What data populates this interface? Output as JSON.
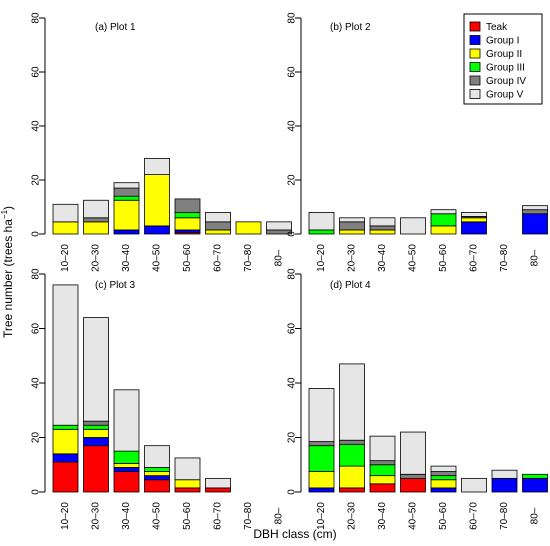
{
  "colors": {
    "Teak": "#ff0000",
    "Group I": "#0000ff",
    "Group II": "#ffff00",
    "Group III": "#00ff00",
    "Group IV": "#808080",
    "Group V": "#e6e6e6"
  },
  "axis_labels": {
    "xlabel": "DBH class (cm)",
    "ylabel": "Tree number (trees ha",
    "ylabel_sup": "−1",
    "ylabel_close": ")"
  },
  "chart_data": [
    {
      "type": "bar",
      "stacked": true,
      "title": "(a) Plot 1",
      "categories": [
        "10–20",
        "20–30",
        "30–40",
        "40–50",
        "50–60",
        "60–70",
        "70–80",
        "80–"
      ],
      "ylim": [
        0,
        80
      ],
      "yticks": [
        0,
        20,
        40,
        60,
        80
      ],
      "series": [
        {
          "name": "Teak",
          "values": [
            0,
            0,
            0,
            0,
            0.5,
            0,
            0,
            0
          ]
        },
        {
          "name": "Group I",
          "values": [
            0,
            0,
            1.5,
            3,
            1,
            0,
            0,
            0
          ]
        },
        {
          "name": "Group II",
          "values": [
            4.5,
            4.5,
            11,
            19,
            4.5,
            1.5,
            4.5,
            0
          ]
        },
        {
          "name": "Group III",
          "values": [
            0,
            0,
            1.5,
            0,
            2,
            0,
            0,
            0
          ]
        },
        {
          "name": "Group IV",
          "values": [
            0,
            1.5,
            3,
            0,
            5,
            3,
            0,
            1.5
          ]
        },
        {
          "name": "Group V",
          "values": [
            6.5,
            6.5,
            2,
            6,
            0,
            3.5,
            0,
            3
          ]
        }
      ]
    },
    {
      "type": "bar",
      "stacked": true,
      "title": "(b) Plot 2",
      "categories": [
        "10–20",
        "20–30",
        "30–40",
        "40–50",
        "50–60",
        "60–70",
        "70–80",
        "80–"
      ],
      "ylim": [
        0,
        80
      ],
      "yticks": [
        0,
        20,
        40,
        60,
        80
      ],
      "series": [
        {
          "name": "Teak",
          "values": [
            0,
            0,
            0,
            0,
            0,
            0,
            0,
            0
          ]
        },
        {
          "name": "Group I",
          "values": [
            0,
            0,
            0,
            0,
            0,
            4.5,
            0,
            7.5
          ]
        },
        {
          "name": "Group II",
          "values": [
            0,
            1.5,
            1.5,
            0,
            3,
            1.5,
            0,
            0
          ]
        },
        {
          "name": "Group III",
          "values": [
            1.5,
            0,
            0,
            0,
            4.5,
            0,
            0,
            0
          ]
        },
        {
          "name": "Group IV",
          "values": [
            0,
            3,
            1.5,
            0,
            0,
            0.5,
            0,
            1.5
          ]
        },
        {
          "name": "Group V",
          "values": [
            6.5,
            1.5,
            3,
            6,
            1.5,
            1.5,
            0,
            1.5
          ]
        }
      ]
    },
    {
      "type": "bar",
      "stacked": true,
      "title": "(c) Plot 3",
      "categories": [
        "10–20",
        "20–30",
        "30–40",
        "40–50",
        "50–60",
        "60–70",
        "70–80",
        "80–"
      ],
      "ylim": [
        0,
        80
      ],
      "yticks": [
        0,
        20,
        40,
        60,
        80
      ],
      "series": [
        {
          "name": "Teak",
          "values": [
            11,
            17,
            7.5,
            4.5,
            1.5,
            1.5,
            0,
            0
          ]
        },
        {
          "name": "Group I",
          "values": [
            3,
            3,
            1.5,
            1.5,
            0,
            0,
            0,
            0
          ]
        },
        {
          "name": "Group II",
          "values": [
            9,
            3,
            1.5,
            1.5,
            3,
            0,
            0,
            0
          ]
        },
        {
          "name": "Group III",
          "values": [
            1.5,
            1.5,
            4.5,
            1.5,
            0,
            0,
            0,
            0
          ]
        },
        {
          "name": "Group IV",
          "values": [
            0,
            1.5,
            0,
            0,
            0,
            0,
            0,
            0
          ]
        },
        {
          "name": "Group V",
          "values": [
            51.5,
            38,
            22.5,
            8,
            8,
            3.5,
            0,
            0
          ]
        }
      ]
    },
    {
      "type": "bar",
      "stacked": true,
      "title": "(d) Plot 4",
      "categories": [
        "10–20",
        "20–30",
        "30–40",
        "40–50",
        "50–60",
        "60–70",
        "70–80",
        "80–"
      ],
      "ylim": [
        0,
        80
      ],
      "yticks": [
        0,
        20,
        40,
        60,
        80
      ],
      "series": [
        {
          "name": "Teak",
          "values": [
            0,
            1.5,
            3,
            5,
            0,
            0,
            0,
            0
          ]
        },
        {
          "name": "Group I",
          "values": [
            1.5,
            0,
            0,
            0,
            1.5,
            0,
            5,
            5
          ]
        },
        {
          "name": "Group II",
          "values": [
            6,
            8,
            3,
            0,
            3,
            0,
            0,
            0
          ]
        },
        {
          "name": "Group III",
          "values": [
            9.5,
            8,
            4,
            0,
            1.5,
            0,
            0,
            1.5
          ]
        },
        {
          "name": "Group IV",
          "values": [
            1.5,
            1.5,
            1.5,
            1.5,
            1.5,
            0,
            0,
            0
          ]
        },
        {
          "name": "Group V",
          "values": [
            19.5,
            28,
            9,
            15.5,
            2,
            5,
            3,
            0
          ]
        }
      ]
    }
  ],
  "legend": [
    "Teak",
    "Group I",
    "Group II",
    "Group III",
    "Group IV",
    "Group V"
  ]
}
